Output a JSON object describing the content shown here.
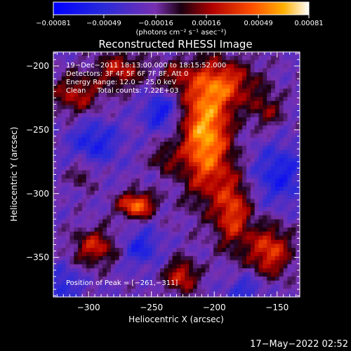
{
  "chart_data": {
    "type": "heatmap",
    "title": "Reconstructed RHESSI Image",
    "xlabel": "Heliocentric X (arcsec)",
    "ylabel": "Heliocentric Y (arcsec)",
    "xlim": [
      -328,
      -132
    ],
    "ylim": [
      -381,
      -189
    ],
    "x_ticks": [
      -300,
      -250,
      -200,
      -150
    ],
    "y_ticks": [
      -350,
      -300,
      -250,
      -200
    ],
    "x_tick_labels": [
      "−300",
      "−250",
      "−200",
      "−150"
    ],
    "y_tick_labels": [
      "−350",
      "−300",
      "−250",
      "−200"
    ],
    "colorbar": {
      "range": [
        -0.00081,
        0.00081
      ],
      "ticks": [
        -0.00081,
        -0.00049,
        -0.00016,
        0.00016,
        0.00049,
        0.00081
      ],
      "tick_labels": [
        "−0.00081",
        "−0.00049",
        "−0.00016",
        "0.00016",
        "0.00049",
        "0.00081"
      ],
      "unit_label": "(photons cm⁻² s⁻¹ asec⁻²)"
    },
    "annotations": {
      "line1": "19−Dec−2011 18:13:00.000 to 18:15:52.000",
      "line2": "Detectors: 3F 4F 5F 6F 7F 8F, Att 0",
      "line3": "Energy Range: 12.0 − 25.0 keV",
      "line4": "Clean     Total counts: 7.22E+03",
      "peak": "Position of Peak = [−261,−311]"
    },
    "peak": {
      "x": -261,
      "y": -311
    },
    "blobs": [
      {
        "x": -207,
        "y": -255,
        "sx": 14,
        "sy": 32,
        "amp": 0.00085
      },
      {
        "x": -262,
        "y": -309,
        "sx": 10,
        "sy": 7,
        "amp": 0.00072
      },
      {
        "x": -185,
        "y": -315,
        "sx": 10,
        "sy": 20,
        "amp": 0.00055
      },
      {
        "x": -190,
        "y": -214,
        "sx": 18,
        "sy": 13,
        "amp": 0.00048
      },
      {
        "x": -275,
        "y": -203,
        "sx": 13,
        "sy": 10,
        "amp": 0.00045
      },
      {
        "x": -310,
        "y": -222,
        "sx": 14,
        "sy": 11,
        "amp": 0.00042
      },
      {
        "x": -295,
        "y": -342,
        "sx": 12,
        "sy": 10,
        "amp": 0.00048
      },
      {
        "x": -226,
        "y": -365,
        "sx": 9,
        "sy": 9,
        "amp": 0.00052
      },
      {
        "x": -156,
        "y": -345,
        "sx": 12,
        "sy": 14,
        "amp": 0.00058
      },
      {
        "x": -158,
        "y": -235,
        "sx": 9,
        "sy": 10,
        "amp": 0.0003
      },
      {
        "x": -232,
        "y": -208,
        "sx": 10,
        "sy": 8,
        "amp": 0.0003
      },
      {
        "x": -240,
        "y": -273,
        "sx": 8,
        "sy": 8,
        "amp": 0.00028
      },
      {
        "x": -305,
        "y": -285,
        "sx": 7,
        "sy": 8,
        "amp": 0.00024
      },
      {
        "x": -242,
        "y": -236,
        "sx": 10,
        "sy": 10,
        "amp": -0.00042
      },
      {
        "x": -295,
        "y": -260,
        "sx": 14,
        "sy": 12,
        "amp": -0.00036
      },
      {
        "x": -148,
        "y": -285,
        "sx": 14,
        "sy": 16,
        "amp": -0.00038
      },
      {
        "x": -258,
        "y": -342,
        "sx": 10,
        "sy": 10,
        "amp": -0.00034
      },
      {
        "x": -320,
        "y": -372,
        "sx": 10,
        "sy": 10,
        "amp": -0.0003
      },
      {
        "x": -175,
        "y": -375,
        "sx": 10,
        "sy": 8,
        "amp": -0.00028
      }
    ]
  },
  "footer": {
    "timestamp": "17−May−2022 02:52"
  }
}
